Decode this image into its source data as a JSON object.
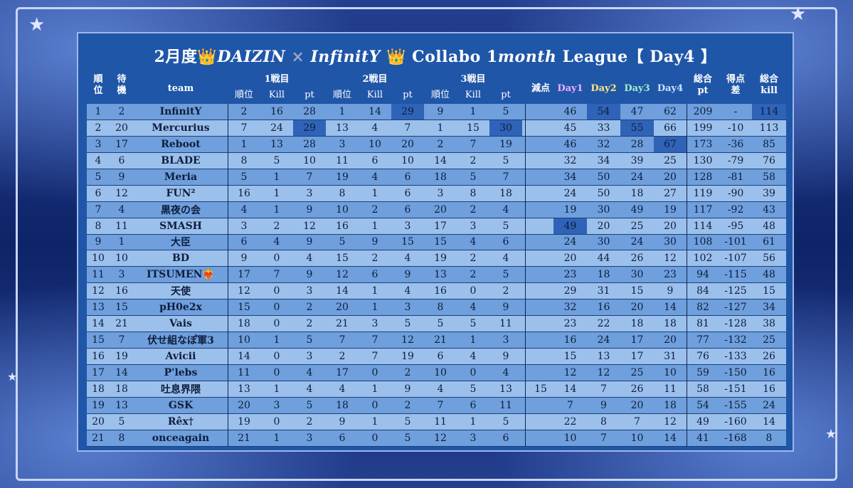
{
  "title": {
    "part1": "2月度",
    "crown": "👑",
    "part2": "DAIZIN",
    "sep": "×",
    "part3": "InfinitY",
    "part4": "Collabo 1",
    "part5": "month",
    "part6": "League【 Day4 】"
  },
  "headers": {
    "rank_top": "順",
    "rank_bot": "位",
    "wait_top": "待",
    "wait_bot": "機",
    "team": "team",
    "game1": "1戦目",
    "game2": "2戦目",
    "game3": "3戦目",
    "place": "順位",
    "kill": "Kill",
    "pt": "pt",
    "penalty": "減点",
    "day1": "Day1",
    "day2": "Day2",
    "day3": "Day3",
    "day4": "Day4",
    "total_top": "総合",
    "total_bot": "pt",
    "diff_top": "得点",
    "diff_bot": "差",
    "tkill_top": "総合",
    "tkill_bot": "kill"
  },
  "colors": {
    "panel": "#1f56a8",
    "row_odd": "#6f9fdc",
    "row_even": "#9cc0ec",
    "highlight": "#2f63b8"
  },
  "rows": [
    {
      "rank": "1",
      "wait": "2",
      "team": "InfinitY",
      "g1p": "2",
      "g1k": "16",
      "g1pt": "28",
      "g2p": "1",
      "g2k": "14",
      "g2pt": "29",
      "g3p": "9",
      "g3k": "1",
      "g3pt": "5",
      "pen": "",
      "d1": "46",
      "d2": "54",
      "d3": "47",
      "d4": "62",
      "total": "209",
      "diff": "-",
      "tkill": "114",
      "hl": [
        "g2pt",
        "d2",
        "tkill"
      ]
    },
    {
      "rank": "2",
      "wait": "20",
      "team": "Mercurius",
      "g1p": "7",
      "g1k": "24",
      "g1pt": "29",
      "g2p": "13",
      "g2k": "4",
      "g2pt": "7",
      "g3p": "1",
      "g3k": "15",
      "g3pt": "30",
      "pen": "",
      "d1": "45",
      "d2": "33",
      "d3": "55",
      "d4": "66",
      "total": "199",
      "diff": "-10",
      "tkill": "113",
      "hl": [
        "g1pt",
        "g3pt",
        "d3"
      ]
    },
    {
      "rank": "3",
      "wait": "17",
      "team": "Reboot",
      "g1p": "1",
      "g1k": "13",
      "g1pt": "28",
      "g2p": "3",
      "g2k": "10",
      "g2pt": "20",
      "g3p": "2",
      "g3k": "7",
      "g3pt": "19",
      "pen": "",
      "d1": "46",
      "d2": "32",
      "d3": "28",
      "d4": "67",
      "total": "173",
      "diff": "-36",
      "tkill": "85",
      "hl": [
        "d4"
      ]
    },
    {
      "rank": "4",
      "wait": "6",
      "team": "BLADE",
      "g1p": "8",
      "g1k": "5",
      "g1pt": "10",
      "g2p": "11",
      "g2k": "6",
      "g2pt": "10",
      "g3p": "14",
      "g3k": "2",
      "g3pt": "5",
      "pen": "",
      "d1": "32",
      "d2": "34",
      "d3": "39",
      "d4": "25",
      "total": "130",
      "diff": "-79",
      "tkill": "76",
      "hl": []
    },
    {
      "rank": "5",
      "wait": "9",
      "team": "Meria",
      "g1p": "5",
      "g1k": "1",
      "g1pt": "7",
      "g2p": "19",
      "g2k": "4",
      "g2pt": "6",
      "g3p": "18",
      "g3k": "5",
      "g3pt": "7",
      "pen": "",
      "d1": "34",
      "d2": "50",
      "d3": "24",
      "d4": "20",
      "total": "128",
      "diff": "-81",
      "tkill": "58",
      "hl": []
    },
    {
      "rank": "6",
      "wait": "12",
      "team": "FUN²",
      "g1p": "16",
      "g1k": "1",
      "g1pt": "3",
      "g2p": "8",
      "g2k": "1",
      "g2pt": "6",
      "g3p": "3",
      "g3k": "8",
      "g3pt": "18",
      "pen": "",
      "d1": "24",
      "d2": "50",
      "d3": "18",
      "d4": "27",
      "total": "119",
      "diff": "-90",
      "tkill": "39",
      "hl": []
    },
    {
      "rank": "7",
      "wait": "4",
      "team": "黒夜の会",
      "g1p": "4",
      "g1k": "1",
      "g1pt": "9",
      "g2p": "10",
      "g2k": "2",
      "g2pt": "6",
      "g3p": "20",
      "g3k": "2",
      "g3pt": "4",
      "pen": "",
      "d1": "19",
      "d2": "30",
      "d3": "49",
      "d4": "19",
      "total": "117",
      "diff": "-92",
      "tkill": "43",
      "hl": []
    },
    {
      "rank": "8",
      "wait": "11",
      "team": "SMASH",
      "g1p": "3",
      "g1k": "2",
      "g1pt": "12",
      "g2p": "16",
      "g2k": "1",
      "g2pt": "3",
      "g3p": "17",
      "g3k": "3",
      "g3pt": "5",
      "pen": "",
      "d1": "49",
      "d2": "20",
      "d3": "25",
      "d4": "20",
      "total": "114",
      "diff": "-95",
      "tkill": "48",
      "hl": [
        "d1"
      ]
    },
    {
      "rank": "9",
      "wait": "1",
      "team": "大臣",
      "g1p": "6",
      "g1k": "4",
      "g1pt": "9",
      "g2p": "5",
      "g2k": "9",
      "g2pt": "15",
      "g3p": "15",
      "g3k": "4",
      "g3pt": "6",
      "pen": "",
      "d1": "24",
      "d2": "30",
      "d3": "24",
      "d4": "30",
      "total": "108",
      "diff": "-101",
      "tkill": "61",
      "hl": []
    },
    {
      "rank": "10",
      "wait": "10",
      "team": "BD",
      "g1p": "9",
      "g1k": "0",
      "g1pt": "4",
      "g2p": "15",
      "g2k": "2",
      "g2pt": "4",
      "g3p": "19",
      "g3k": "2",
      "g3pt": "4",
      "pen": "",
      "d1": "20",
      "d2": "44",
      "d3": "26",
      "d4": "12",
      "total": "102",
      "diff": "-107",
      "tkill": "56",
      "hl": []
    },
    {
      "rank": "11",
      "wait": "3",
      "team": "ITSUMEN❤️‍🔥",
      "g1p": "17",
      "g1k": "7",
      "g1pt": "9",
      "g2p": "12",
      "g2k": "6",
      "g2pt": "9",
      "g3p": "13",
      "g3k": "2",
      "g3pt": "5",
      "pen": "",
      "d1": "23",
      "d2": "18",
      "d3": "30",
      "d4": "23",
      "total": "94",
      "diff": "-115",
      "tkill": "48",
      "hl": []
    },
    {
      "rank": "12",
      "wait": "16",
      "team": "天使",
      "g1p": "12",
      "g1k": "0",
      "g1pt": "3",
      "g2p": "14",
      "g2k": "1",
      "g2pt": "4",
      "g3p": "16",
      "g3k": "0",
      "g3pt": "2",
      "pen": "",
      "d1": "29",
      "d2": "31",
      "d3": "15",
      "d4": "9",
      "total": "84",
      "diff": "-125",
      "tkill": "15",
      "hl": []
    },
    {
      "rank": "13",
      "wait": "15",
      "team": "pH0e2x",
      "g1p": "15",
      "g1k": "0",
      "g1pt": "2",
      "g2p": "20",
      "g2k": "1",
      "g2pt": "3",
      "g3p": "8",
      "g3k": "4",
      "g3pt": "9",
      "pen": "",
      "d1": "32",
      "d2": "16",
      "d3": "20",
      "d4": "14",
      "total": "82",
      "diff": "-127",
      "tkill": "34",
      "hl": []
    },
    {
      "rank": "14",
      "wait": "21",
      "team": "Vais",
      "g1p": "18",
      "g1k": "0",
      "g1pt": "2",
      "g2p": "21",
      "g2k": "3",
      "g2pt": "5",
      "g3p": "5",
      "g3k": "5",
      "g3pt": "11",
      "pen": "",
      "d1": "23",
      "d2": "22",
      "d3": "18",
      "d4": "18",
      "total": "81",
      "diff": "-128",
      "tkill": "38",
      "hl": []
    },
    {
      "rank": "15",
      "wait": "7",
      "team": "伏せ組なぽ軍3",
      "g1p": "10",
      "g1k": "1",
      "g1pt": "5",
      "g2p": "7",
      "g2k": "7",
      "g2pt": "12",
      "g3p": "21",
      "g3k": "1",
      "g3pt": "3",
      "pen": "",
      "d1": "16",
      "d2": "24",
      "d3": "17",
      "d4": "20",
      "total": "77",
      "diff": "-132",
      "tkill": "25",
      "hl": []
    },
    {
      "rank": "16",
      "wait": "19",
      "team": "Avicii",
      "g1p": "14",
      "g1k": "0",
      "g1pt": "3",
      "g2p": "2",
      "g2k": "7",
      "g2pt": "19",
      "g3p": "6",
      "g3k": "4",
      "g3pt": "9",
      "pen": "",
      "d1": "15",
      "d2": "13",
      "d3": "17",
      "d4": "31",
      "total": "76",
      "diff": "-133",
      "tkill": "26",
      "hl": []
    },
    {
      "rank": "17",
      "wait": "14",
      "team": "P'lebs",
      "g1p": "11",
      "g1k": "0",
      "g1pt": "4",
      "g2p": "17",
      "g2k": "0",
      "g2pt": "2",
      "g3p": "10",
      "g3k": "0",
      "g3pt": "4",
      "pen": "",
      "d1": "12",
      "d2": "12",
      "d3": "25",
      "d4": "10",
      "total": "59",
      "diff": "-150",
      "tkill": "16",
      "hl": []
    },
    {
      "rank": "18",
      "wait": "18",
      "team": "吐息界隈",
      "g1p": "13",
      "g1k": "1",
      "g1pt": "4",
      "g2p": "4",
      "g2k": "1",
      "g2pt": "9",
      "g3p": "4",
      "g3k": "5",
      "g3pt": "13",
      "pen": "15",
      "d1": "14",
      "d2": "7",
      "d3": "26",
      "d4": "11",
      "total": "58",
      "diff": "-151",
      "tkill": "16",
      "hl": []
    },
    {
      "rank": "19",
      "wait": "13",
      "team": "GSK",
      "g1p": "20",
      "g1k": "3",
      "g1pt": "5",
      "g2p": "18",
      "g2k": "0",
      "g2pt": "2",
      "g3p": "7",
      "g3k": "6",
      "g3pt": "11",
      "pen": "",
      "d1": "7",
      "d2": "9",
      "d3": "20",
      "d4": "18",
      "total": "54",
      "diff": "-155",
      "tkill": "24",
      "hl": []
    },
    {
      "rank": "20",
      "wait": "5",
      "team": "Rêx†",
      "g1p": "19",
      "g1k": "0",
      "g1pt": "2",
      "g2p": "9",
      "g2k": "1",
      "g2pt": "5",
      "g3p": "11",
      "g3k": "1",
      "g3pt": "5",
      "pen": "",
      "d1": "22",
      "d2": "8",
      "d3": "7",
      "d4": "12",
      "total": "49",
      "diff": "-160",
      "tkill": "14",
      "hl": []
    },
    {
      "rank": "21",
      "wait": "8",
      "team": "onceagain",
      "g1p": "21",
      "g1k": "1",
      "g1pt": "3",
      "g2p": "6",
      "g2k": "0",
      "g2pt": "5",
      "g3p": "12",
      "g3k": "3",
      "g3pt": "6",
      "pen": "",
      "d1": "10",
      "d2": "7",
      "d3": "10",
      "d4": "14",
      "total": "41",
      "diff": "-168",
      "tkill": "8",
      "hl": []
    }
  ]
}
